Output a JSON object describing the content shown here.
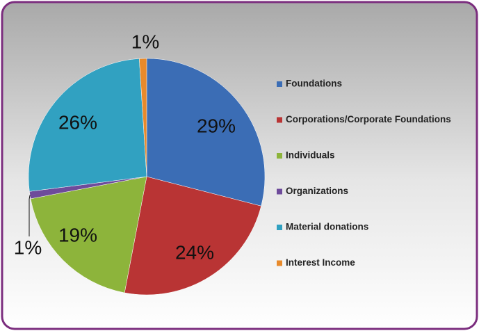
{
  "chart_data": {
    "type": "pie",
    "categories": [
      "Foundations",
      "Corporations/Corporate Foundations",
      "Individuals",
      "Organizations",
      "Material donations",
      "Interest Income"
    ],
    "values": [
      29,
      24,
      19,
      1,
      26,
      1
    ],
    "value_labels": [
      "29%",
      "24%",
      "19%",
      "1%",
      "26%",
      "1%"
    ],
    "colors": [
      "#3b6db5",
      "#b93434",
      "#8db43b",
      "#6e4b9b",
      "#31a1c1",
      "#e88a2b"
    ],
    "legend": "right"
  }
}
